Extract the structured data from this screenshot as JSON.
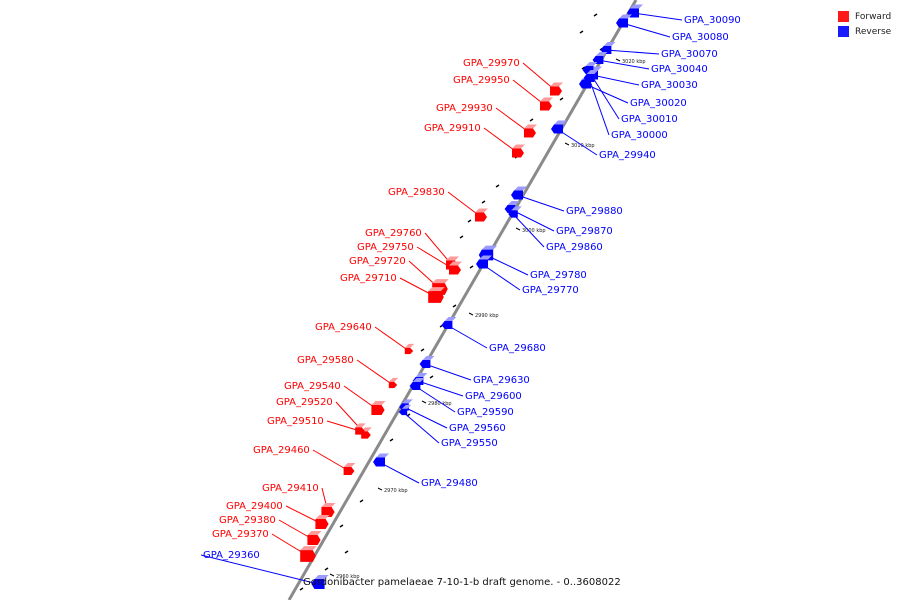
{
  "caption": "Gordonibacter pamelaeae 7-10-1-b draft genome. - 0..3608022",
  "legend": [
    {
      "label": "Forward",
      "color": "#ff1a1a"
    },
    {
      "label": "Reverse",
      "color": "#1a1aff"
    }
  ],
  "colors": {
    "forward": "#ff0000",
    "reverse": "#0000ff",
    "axis": "#8a8a8a"
  },
  "ticks": [
    "3020 kbp",
    "3010 kbp",
    "3000 kbp",
    "2990 kbp",
    "2980 kbp",
    "2970 kbp",
    "2960 kbp"
  ],
  "genes": {
    "forward": [
      "GPA_29970",
      "GPA_29950",
      "GPA_29930",
      "GPA_29910",
      "GPA_29830",
      "GPA_29760",
      "GPA_29750",
      "GPA_29720",
      "GPA_29710",
      "GPA_29640",
      "GPA_29580",
      "GPA_29540",
      "GPA_29520",
      "GPA_29510",
      "GPA_29460",
      "GPA_29410",
      "GPA_29400",
      "GPA_29380",
      "GPA_29370"
    ],
    "reverse": [
      "GPA_30090",
      "GPA_30080",
      "GPA_30070",
      "GPA_30040",
      "GPA_30030",
      "GPA_30020",
      "GPA_30010",
      "GPA_30000",
      "GPA_29940",
      "GPA_29880",
      "GPA_29870",
      "GPA_29860",
      "GPA_29780",
      "GPA_29770",
      "GPA_29680",
      "GPA_29630",
      "GPA_29600",
      "GPA_29590",
      "GPA_29560",
      "GPA_29550",
      "GPA_29480",
      "GPA_29360"
    ]
  }
}
